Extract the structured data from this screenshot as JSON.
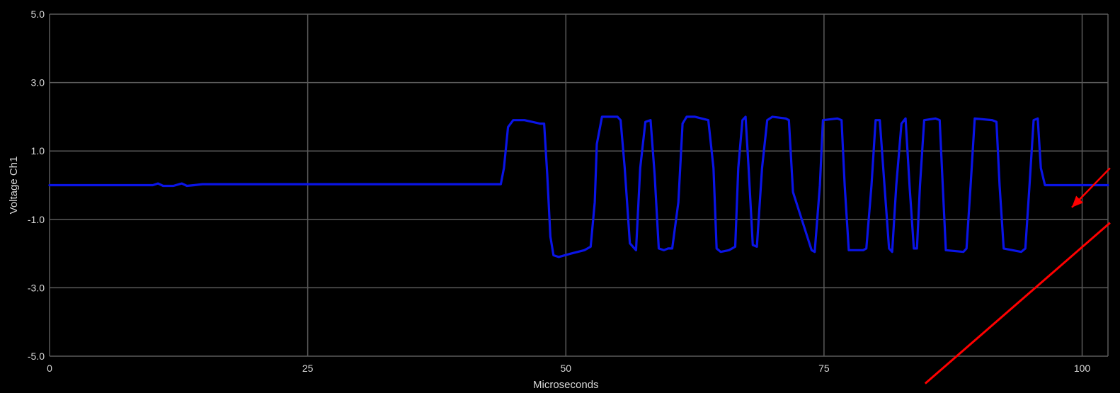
{
  "chart_data": {
    "type": "line",
    "xlabel": "Microseconds",
    "ylabel": "Voltage Ch1",
    "xlim": [
      0,
      102.5
    ],
    "ylim": [
      -5.0,
      5.0
    ],
    "x_ticks": [
      "0",
      "25",
      "50",
      "75",
      "100"
    ],
    "y_ticks": [
      "5.0",
      "3.0",
      "1.0",
      "-1.0",
      "-3.0",
      "-5.0"
    ],
    "grid": true,
    "background_color": "#000000",
    "grid_color": "#5a5a5a",
    "series": [
      {
        "color": "#0a14e6",
        "x": [
          0,
          10,
          10.5,
          11,
          12,
          12.8,
          13.3,
          14,
          14.8,
          15.5,
          20,
          30,
          40,
          43.7,
          44.0,
          44.4,
          44.9,
          46,
          47.5,
          47.9,
          48.2,
          48.5,
          48.8,
          49.3,
          50.5,
          51.8,
          52.4,
          52.8,
          53.0,
          53.5,
          55.0,
          55.3,
          55.7,
          56.2,
          56.8,
          57.2,
          57.7,
          58.2,
          58.6,
          59.0,
          59.5,
          59.9,
          60.3,
          60.9,
          61.3,
          61.7,
          62.5,
          63.8,
          64.3,
          64.6,
          65.0,
          65.8,
          66.4,
          66.7,
          67.1,
          67.4,
          67.7,
          68.1,
          68.5,
          69.0,
          69.5,
          70.0,
          71.3,
          71.6,
          72.0,
          73.8,
          74.1,
          74.6,
          74.9,
          76.3,
          76.7,
          77.0,
          77.4,
          78.8,
          79.1,
          79.6,
          80.0,
          80.4,
          80.9,
          81.3,
          81.6,
          82.0,
          82.5,
          82.9,
          83.3,
          83.7,
          84.0,
          84.3,
          84.7,
          85.8,
          86.2,
          86.5,
          86.8,
          88.5,
          88.8,
          89.2,
          89.6,
          91.3,
          91.7,
          92.0,
          92.4,
          94.1,
          94.5,
          94.9,
          95.3,
          95.7,
          96.0,
          96.4,
          97.5,
          100,
          102.5
        ],
        "y": [
          0,
          0,
          0.05,
          -0.02,
          -0.02,
          0.05,
          -0.02,
          0,
          0.03,
          0.03,
          0.03,
          0.03,
          0.03,
          0.03,
          0.5,
          1.7,
          1.9,
          1.9,
          1.8,
          1.8,
          0.3,
          -1.5,
          -2.05,
          -2.1,
          -2.0,
          -1.9,
          -1.8,
          -0.5,
          1.2,
          2.0,
          2.0,
          1.9,
          0.5,
          -1.7,
          -1.9,
          0.5,
          1.85,
          1.9,
          0.3,
          -1.85,
          -1.9,
          -1.85,
          -1.85,
          -0.5,
          1.8,
          2.0,
          2.0,
          1.9,
          0.5,
          -1.85,
          -1.95,
          -1.9,
          -1.8,
          0.5,
          1.9,
          2.0,
          0.5,
          -1.75,
          -1.8,
          0.5,
          1.9,
          2.0,
          1.95,
          1.9,
          -0.2,
          -1.9,
          -1.95,
          0,
          1.9,
          1.95,
          1.9,
          0,
          -1.9,
          -1.9,
          -1.85,
          0,
          1.9,
          1.9,
          -0.2,
          -1.85,
          -1.95,
          0,
          1.8,
          1.95,
          -0.1,
          -1.85,
          -1.85,
          0,
          1.9,
          1.95,
          1.9,
          0,
          -1.9,
          -1.95,
          -1.85,
          0,
          1.95,
          1.9,
          1.85,
          0,
          -1.85,
          -1.95,
          -1.85,
          0,
          1.9,
          1.95,
          0.5,
          0,
          0,
          0,
          0
        ]
      }
    ],
    "annotations": [
      {
        "type": "arrow",
        "color": "#ff0000",
        "description_points": [
          [
            102.7,
            0.5
          ],
          [
            99.0,
            -0.65
          ]
        ]
      },
      {
        "type": "line",
        "color": "#ff0000",
        "description_points": [
          [
            84.8,
            -5.8
          ],
          [
            102.7,
            -1.1
          ]
        ]
      }
    ]
  }
}
